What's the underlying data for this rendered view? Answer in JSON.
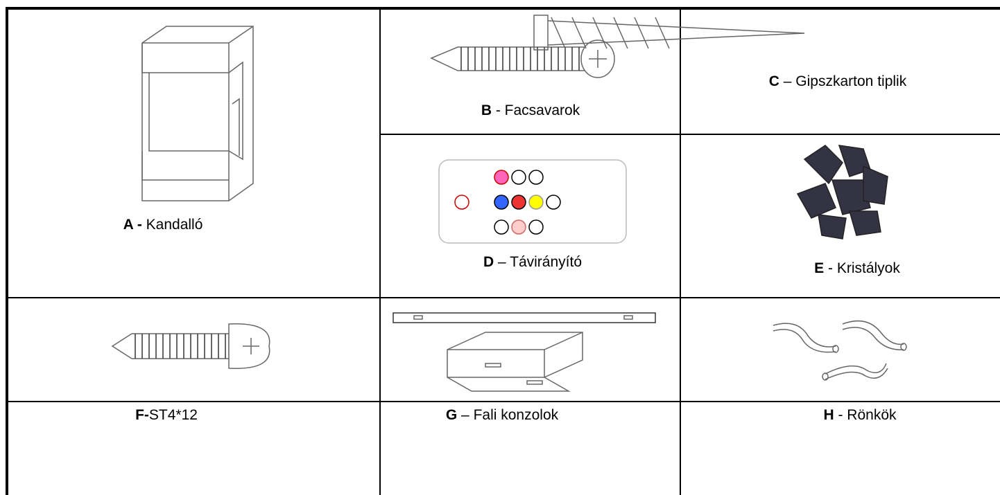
{
  "items": [
    {
      "letter": "A -",
      "name": " Kandalló"
    },
    {
      "letter": "B",
      "name": " - Facsavarok"
    },
    {
      "letter": "C",
      "name": " – Gipszkarton tiplik"
    },
    {
      "letter": "D",
      "name": " – Távirányító"
    },
    {
      "letter": "E",
      "name": " - Kristályok"
    },
    {
      "letter": "F-",
      "name": "ST4*12"
    },
    {
      "letter": "G",
      "name": " – Fali konzolok"
    },
    {
      "letter": "H",
      "name": " - Rönkök"
    }
  ]
}
